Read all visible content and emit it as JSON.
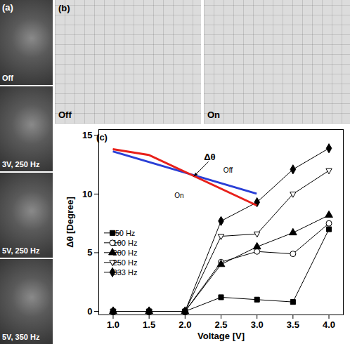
{
  "image_panels": [
    {
      "label": "(a)",
      "frames": [
        "Off",
        "3V, 250 Hz",
        "5V, 250 Hz",
        "5V, 350 Hz"
      ]
    },
    {
      "label": "(b)",
      "frames": [
        "Off",
        "On"
      ]
    }
  ],
  "chart_data": {
    "type": "line",
    "panel_label": "(c)",
    "x_label": "Voltage [V]",
    "y_label": "Δθ [Degree]",
    "x": [
      1,
      1.5,
      2,
      2.5,
      3,
      3.5,
      4
    ],
    "series": [
      {
        "name": "50 Hz",
        "color": "#000000",
        "marker": "filled-square",
        "values": [
          0,
          0,
          0,
          1.2,
          1.0,
          0.8,
          7.0
        ]
      },
      {
        "name": "100 Hz",
        "color": "#000000",
        "marker": "open-circle",
        "values": [
          0,
          0,
          0,
          4.2,
          5.1,
          4.9,
          7.5
        ]
      },
      {
        "name": "200 Hz",
        "color": "#000000",
        "marker": "filled-triangle",
        "values": [
          0,
          0,
          0,
          4.0,
          5.5,
          6.7,
          8.2
        ]
      },
      {
        "name": "250 Hz",
        "color": "#000000",
        "marker": "open-triangle-down",
        "values": [
          0,
          0,
          0,
          6.4,
          6.6,
          10.0,
          12.0
        ]
      },
      {
        "name": "333 Hz",
        "color": "#000000",
        "marker": "filled-diamond",
        "values": [
          0,
          0,
          0,
          7.7,
          9.3,
          12.1,
          13.9
        ]
      }
    ],
    "xlim": [
      0.8,
      4.2
    ],
    "ylim": [
      -0.3,
      15.5
    ],
    "xticks": [
      {
        "value": 1,
        "label": "1.0"
      },
      {
        "value": 1.5,
        "label": "1.5"
      },
      {
        "value": 2,
        "label": "2.0"
      },
      {
        "value": 2.5,
        "label": "2.5"
      },
      {
        "value": 3,
        "label": "3.0"
      },
      {
        "value": 3.5,
        "label": "3.5"
      },
      {
        "value": 4,
        "label": "4.0"
      }
    ],
    "yticks": [
      0,
      5,
      10,
      15
    ],
    "grid": false,
    "legend": "lower left",
    "inset": {
      "symbol": "Δθ",
      "lines": [
        {
          "name": "Off",
          "color": "#2a3fd6"
        },
        {
          "name": "On",
          "color": "#e8201a"
        }
      ]
    }
  }
}
